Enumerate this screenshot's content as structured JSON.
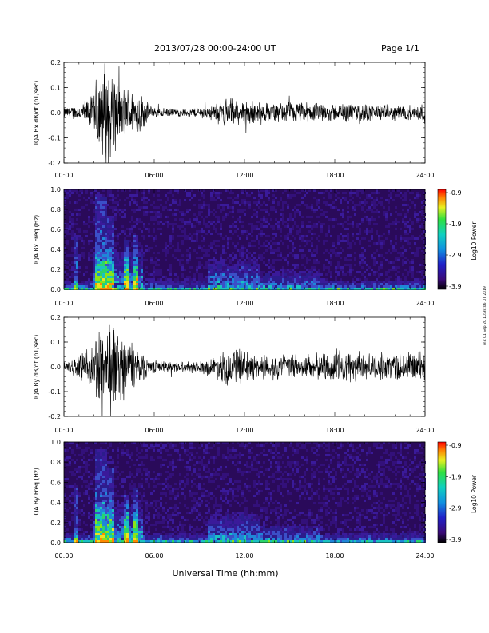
{
  "header": {
    "title": "2013/07/28  00:00-24:00 UT",
    "page": "Page 1/1"
  },
  "side_note": "mit 01 Sep 20 10:38:06 UT 2019",
  "xlabel": "Universal Time (hh:mm)",
  "chart_data": [
    {
      "type": "line",
      "title": "",
      "ylabel": "IQA Bx dB/dt (nT/sec)",
      "ylim": [
        -0.2,
        0.2
      ],
      "yticks": [
        0.2,
        0.1,
        0.0,
        -0.1,
        -0.2
      ],
      "xlim": [
        "00:00",
        "24:00"
      ],
      "xticks": [
        "00:00",
        "06:00",
        "12:00",
        "18:00",
        "24:00"
      ],
      "envelope": {
        "x_hours": [
          0,
          1,
          2,
          2.3,
          2.6,
          3.0,
          3.2,
          3.5,
          4.0,
          4.5,
          5.0,
          5.5,
          6,
          7,
          8,
          9,
          10,
          10.5,
          11,
          11.5,
          12,
          13,
          14,
          15,
          16,
          17,
          18,
          19,
          20,
          21,
          22,
          23,
          24
        ],
        "amp": [
          0.02,
          0.03,
          0.07,
          0.2,
          0.2,
          0.2,
          0.2,
          0.12,
          0.1,
          0.1,
          0.09,
          0.04,
          0.02,
          0.015,
          0.015,
          0.02,
          0.03,
          0.05,
          0.06,
          0.05,
          0.05,
          0.04,
          0.035,
          0.04,
          0.04,
          0.035,
          0.035,
          0.035,
          0.035,
          0.03,
          0.03,
          0.03,
          0.04
        ]
      }
    },
    {
      "type": "heatmap",
      "ylabel": "IQA Bx Freq (Hz)",
      "ylim": [
        0.0,
        1.0
      ],
      "yticks": [
        1.0,
        0.8,
        0.6,
        0.4,
        0.2,
        0.0
      ],
      "xlim": [
        "00:00",
        "24:00"
      ],
      "xticks": [
        "00:00",
        "06:00",
        "12:00",
        "18:00",
        "24:00"
      ],
      "colorbar": {
        "label": "Log10 Power",
        "range": [
          -3.9,
          -0.9
        ],
        "ticks": [
          "-0.9",
          "-1.9",
          "-2.9",
          "-3.9"
        ]
      }
    },
    {
      "type": "line",
      "ylabel": "IQA By dB/dt (nT/sec)",
      "ylim": [
        -0.2,
        0.2
      ],
      "yticks": [
        0.2,
        0.1,
        0.0,
        -0.1,
        -0.2
      ],
      "xlim": [
        "00:00",
        "24:00"
      ],
      "xticks": [
        "00:00",
        "06:00",
        "12:00",
        "18:00",
        "24:00"
      ],
      "envelope": {
        "x_hours": [
          0,
          1,
          2,
          2.3,
          2.6,
          3.0,
          3.2,
          3.5,
          4.0,
          4.5,
          5.0,
          5.5,
          6,
          7,
          8,
          9,
          10,
          10.5,
          11,
          11.5,
          12,
          13,
          14,
          15,
          16,
          17,
          18,
          19,
          20,
          21,
          22,
          23,
          24
        ],
        "amp": [
          0.02,
          0.04,
          0.09,
          0.2,
          0.2,
          0.2,
          0.2,
          0.15,
          0.12,
          0.1,
          0.08,
          0.04,
          0.025,
          0.02,
          0.02,
          0.025,
          0.04,
          0.06,
          0.08,
          0.07,
          0.06,
          0.05,
          0.05,
          0.05,
          0.05,
          0.05,
          0.07,
          0.06,
          0.05,
          0.05,
          0.06,
          0.06,
          0.06
        ]
      }
    },
    {
      "type": "heatmap",
      "ylabel": "IQA By Freq (Hz)",
      "ylim": [
        0.0,
        1.0
      ],
      "yticks": [
        1.0,
        0.8,
        0.6,
        0.4,
        0.2,
        0.0
      ],
      "xlim": [
        "00:00",
        "24:00"
      ],
      "xticks": [
        "00:00",
        "06:00",
        "12:00",
        "18:00",
        "24:00"
      ],
      "colorbar": {
        "label": "Log10 Power",
        "range": [
          -3.9,
          -0.9
        ],
        "ticks": [
          "-0.9",
          "-1.9",
          "-2.9",
          "-3.9"
        ]
      }
    }
  ]
}
